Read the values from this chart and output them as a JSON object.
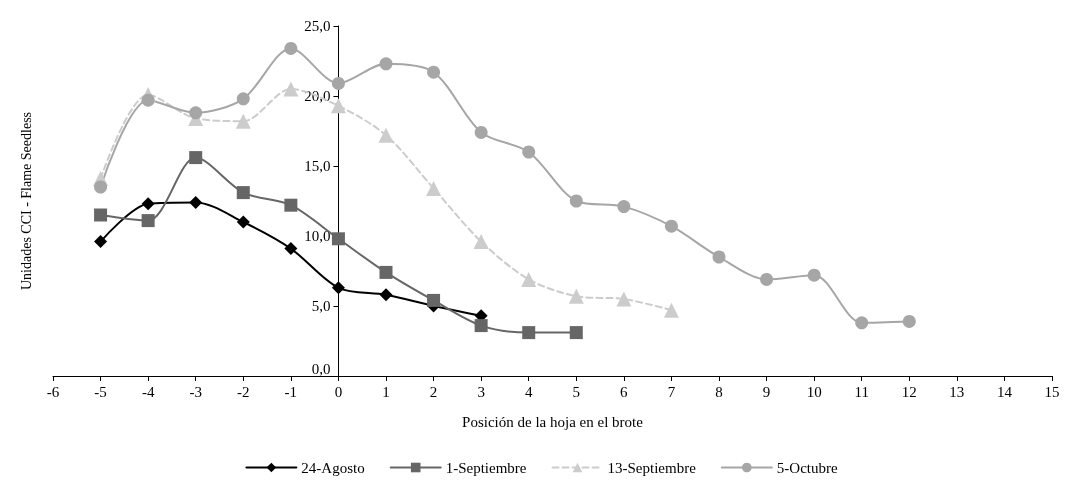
{
  "chart_data": {
    "type": "line",
    "xlabel": "Posición de la hoja en el brote",
    "ylabel": "Unidades CCI - Flame Seedless",
    "xlim": [
      -6,
      15
    ],
    "xticks": [
      -6,
      -5,
      -4,
      -3,
      -2,
      -1,
      0,
      1,
      2,
      3,
      4,
      5,
      6,
      7,
      8,
      9,
      10,
      11,
      12,
      13,
      14,
      15
    ],
    "ylim": [
      0,
      25
    ],
    "yticks": [
      {
        "value": 0,
        "label": "0,0"
      },
      {
        "value": 5,
        "label": "5,0"
      },
      {
        "value": 10,
        "label": "10,0"
      },
      {
        "value": 15,
        "label": "15,0"
      },
      {
        "value": 20,
        "label": "20,0"
      },
      {
        "value": 25,
        "label": "25,0"
      }
    ],
    "grid": false,
    "legend": "bottom",
    "series": [
      {
        "name": "24-Agosto",
        "color": "#000000",
        "marker": "diamond",
        "line_style": "solid",
        "x": [
          -5,
          -4,
          -3,
          -2,
          -1,
          0,
          1,
          2,
          3
        ],
        "values": [
          9.6,
          12.3,
          12.4,
          11.0,
          9.1,
          6.3,
          5.8,
          5.0,
          4.3
        ]
      },
      {
        "name": "1-Septiembre",
        "color": "#666666",
        "marker": "square",
        "line_style": "solid",
        "x": [
          -5,
          -4,
          -3,
          -2,
          -1,
          0,
          1,
          2,
          3,
          4,
          5
        ],
        "values": [
          11.5,
          11.1,
          15.6,
          13.1,
          12.2,
          9.8,
          7.4,
          5.4,
          3.6,
          3.1,
          3.1
        ]
      },
      {
        "name": "13-Septiembre",
        "color": "#cccccc",
        "marker": "triangle",
        "line_style": "dashed",
        "x": [
          -5,
          -4,
          -3,
          -2,
          -1,
          0,
          1,
          2,
          3,
          4,
          5,
          6,
          7
        ],
        "values": [
          14.1,
          20.1,
          18.4,
          18.2,
          20.5,
          19.3,
          17.2,
          13.4,
          9.6,
          6.9,
          5.7,
          5.5,
          4.7
        ]
      },
      {
        "name": "5-Octubre",
        "color": "#a6a6a6",
        "marker": "circle",
        "line_style": "solid",
        "x": [
          -5,
          -4,
          -3,
          -2,
          -1,
          0,
          1,
          2,
          3,
          4,
          5,
          6,
          7,
          8,
          9,
          10,
          11,
          12
        ],
        "values": [
          13.5,
          19.7,
          18.8,
          19.8,
          23.4,
          20.9,
          22.3,
          21.7,
          17.4,
          16.0,
          12.5,
          12.1,
          10.7,
          8.5,
          6.9,
          7.2,
          3.8,
          3.9
        ]
      }
    ]
  }
}
